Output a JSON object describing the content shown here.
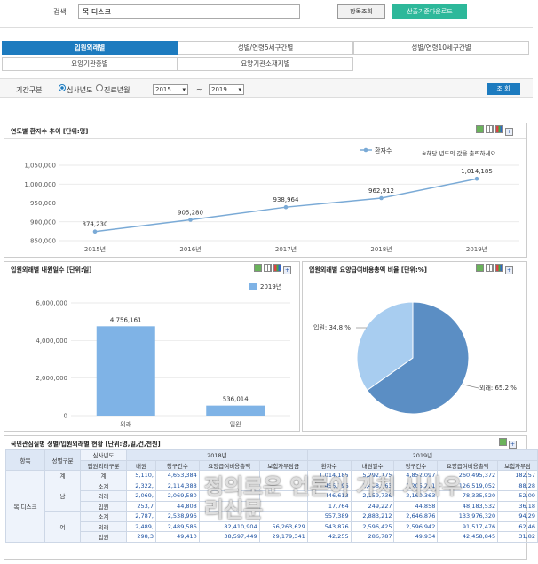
{
  "search": {
    "label": "검색",
    "value": "목 디스크",
    "btn_search": "항목조회",
    "btn_download": "산출기준다운로드"
  },
  "tabs": [
    {
      "label": "입원외래별"
    },
    {
      "label": "성별/연령5세구간별"
    },
    {
      "label": "성별/연령10세구간별"
    },
    {
      "label": "요양기관종별"
    },
    {
      "label": "요양기관소재지별"
    }
  ],
  "filter": {
    "label": "기간구분",
    "radio1": "심사년도",
    "radio2": "진료년월",
    "from": "2015",
    "tilde": "~",
    "to": "2019",
    "btn": "조 회"
  },
  "panel1": {
    "title": "연도별 환자수 추이 [단위:명]",
    "legend": "환자수",
    "note": "※해당 년도의 값을 출력하세요",
    "yticks": [
      "1,050,000",
      "1,000,000",
      "950,000",
      "900,000",
      "850,000"
    ]
  },
  "panel2": {
    "title": "입원외래별 내원일수 [단위:일]",
    "legend": "2019년",
    "yticks": [
      "6,000,000",
      "4,000,000",
      "2,000,000",
      "0"
    ]
  },
  "panel3": {
    "title": "입원외래별 요양급여비용총액 비율 [단위:%]",
    "label_in": "입원: 34.8 %",
    "label_out": "외래: 65.2 %"
  },
  "chart_data": [
    {
      "type": "line",
      "title": "연도별 환자수 추이 [단위:명]",
      "categories": [
        "2015년",
        "2016년",
        "2017년",
        "2018년",
        "2019년"
      ],
      "series": [
        {
          "name": "환자수",
          "values": [
            874230,
            905280,
            938964,
            962912,
            1014185
          ]
        }
      ],
      "value_labels": [
        "874,230",
        "905,280",
        "938,964",
        "962,912",
        "1,014,185"
      ],
      "ylim": [
        850000,
        1050000
      ],
      "color": "#7aaad6"
    },
    {
      "type": "bar",
      "title": "입원외래별 내원일수 [단위:일]",
      "categories": [
        "외래",
        "입원"
      ],
      "series": [
        {
          "name": "2019년",
          "values": [
            4756161,
            536014
          ]
        }
      ],
      "value_labels": [
        "4,756,161",
        "536,014"
      ],
      "ylim": [
        0,
        6000000
      ],
      "color": "#7fb3e6"
    },
    {
      "type": "pie",
      "title": "입원외래별 요양급여비용총액 비율 [단위:%]",
      "categories": [
        "외래",
        "입원"
      ],
      "values": [
        65.2,
        34.8
      ],
      "colors": [
        "#5b8ec4",
        "#a8cdf0"
      ]
    }
  ],
  "table": {
    "title": "국민관심질병 성별/입원외래별 현황 [단위:명,일,건,천원]",
    "header1": [
      "항목",
      "성별구분",
      "입원외래구분",
      "2018년",
      "2019년"
    ],
    "sub_year": "심사년도",
    "header2": [
      "내원",
      "청구건수",
      "요양급여비용총액",
      "보험자부담금",
      "환자수",
      "내원일수",
      "청구건수",
      "요양급여비용총액",
      "보험자부담"
    ],
    "disease": "목 디스크",
    "rows": [
      {
        "sex": "계",
        "type": "계",
        "c": [
          "5,110,",
          "4,653,384",
          "",
          "",
          "1,014,185",
          "5,292,175",
          "4,852,097",
          "260,495,372",
          "182,57"
        ]
      },
      {
        "sex": "남",
        "type": "소계",
        "c": [
          "2,322,",
          "2,114,388",
          "",
          "",
          "456,796",
          "2,408,963",
          "2,205,221",
          "126,519,052",
          "88,28"
        ]
      },
      {
        "sex": "",
        "type": "외래",
        "c": [
          "2,069,",
          "2,069,580",
          "",
          "",
          "446,618",
          "2,159,736",
          "2,160,363",
          "78,335,520",
          "52,09"
        ]
      },
      {
        "sex": "",
        "type": "입원",
        "c": [
          "253,7",
          "44,808",
          "",
          "",
          "17,764",
          "249,227",
          "44,858",
          "48,183,532",
          "36,18"
        ]
      },
      {
        "sex": "여",
        "type": "소계",
        "c": [
          "2,787,",
          "2,538,996",
          "",
          "",
          "557,389",
          "2,883,212",
          "2,646,876",
          "133,976,320",
          "94,29"
        ]
      },
      {
        "sex": "",
        "type": "외래",
        "c": [
          "2,489,",
          "2,489,586",
          "82,410,904",
          "56,263,629",
          "543,876",
          "2,596,425",
          "2,596,942",
          "91,517,476",
          "62,46"
        ]
      },
      {
        "sex": "",
        "type": "입원",
        "c": [
          "298,3",
          "49,410",
          "38,597,449",
          "29,179,341",
          "42,255",
          "286,787",
          "49,934",
          "42,458,845",
          "31,82"
        ]
      }
    ]
  },
  "watermark": "정의로운 언론이 가치 시사우리신문"
}
